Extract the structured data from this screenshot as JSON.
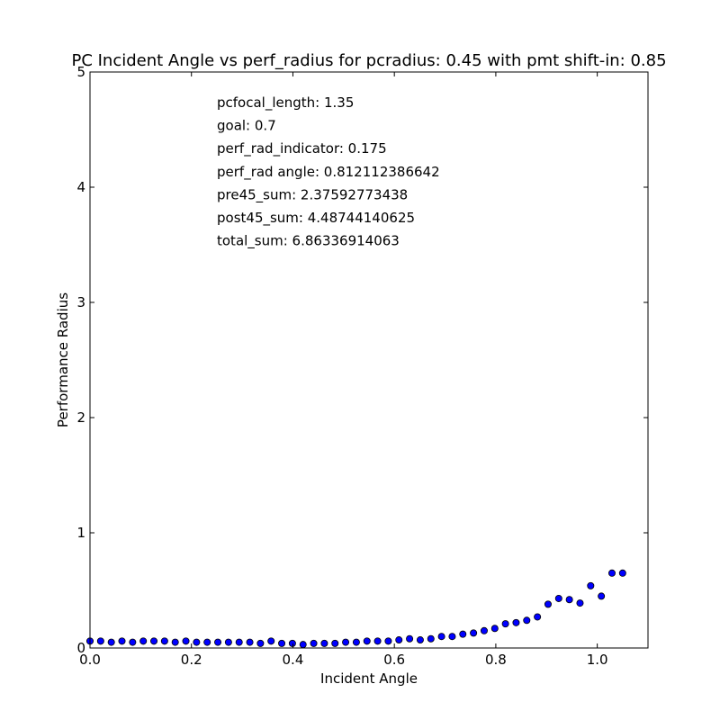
{
  "chart_data": {
    "type": "scatter",
    "title": "PC Incident Angle vs perf_radius for pcradius: 0.45 with pmt shift-in: 0.85",
    "xlabel": "Incident Angle",
    "ylabel": "Performance Radius",
    "xlim": [
      0.0,
      1.1
    ],
    "ylim": [
      0,
      5
    ],
    "x_ticks": [
      0.0,
      0.2,
      0.4,
      0.6,
      0.8,
      1.0
    ],
    "x_tick_labels": [
      "0.0",
      "0.2",
      "0.4",
      "0.6",
      "0.8",
      "1.0"
    ],
    "y_ticks": [
      0,
      1,
      2,
      3,
      4,
      5
    ],
    "y_tick_labels": [
      "0",
      "1",
      "2",
      "3",
      "4",
      "5"
    ],
    "grid": false,
    "marker_color": "#0000ff",
    "x": [
      0.0,
      0.021,
      0.042,
      0.063,
      0.084,
      0.105,
      0.126,
      0.147,
      0.168,
      0.189,
      0.21,
      0.231,
      0.252,
      0.273,
      0.294,
      0.315,
      0.336,
      0.357,
      0.378,
      0.399,
      0.42,
      0.441,
      0.462,
      0.483,
      0.504,
      0.525,
      0.546,
      0.567,
      0.588,
      0.609,
      0.63,
      0.651,
      0.672,
      0.693,
      0.714,
      0.735,
      0.756,
      0.777,
      0.798,
      0.819,
      0.84,
      0.861,
      0.882,
      0.903,
      0.924,
      0.945,
      0.966,
      0.987,
      1.008,
      1.029,
      1.05
    ],
    "y": [
      0.06,
      0.06,
      0.05,
      0.06,
      0.05,
      0.06,
      0.06,
      0.06,
      0.05,
      0.06,
      0.05,
      0.05,
      0.05,
      0.05,
      0.05,
      0.05,
      0.04,
      0.06,
      0.04,
      0.04,
      0.03,
      0.04,
      0.04,
      0.04,
      0.05,
      0.05,
      0.06,
      0.06,
      0.06,
      0.07,
      0.08,
      0.07,
      0.08,
      0.1,
      0.1,
      0.12,
      0.13,
      0.15,
      0.17,
      0.21,
      0.22,
      0.24,
      0.27,
      0.38,
      0.43,
      0.42,
      0.39,
      0.54,
      0.45,
      0.65,
      0.65
    ],
    "annotations": [
      "pcfocal_length: 1.35",
      "goal: 0.7",
      "perf_rad_indicator: 0.175",
      "perf_rad angle: 0.812112386642",
      "pre45_sum: 2.37592773438",
      "post45_sum: 4.48744140625",
      "total_sum: 6.86336914063"
    ]
  }
}
